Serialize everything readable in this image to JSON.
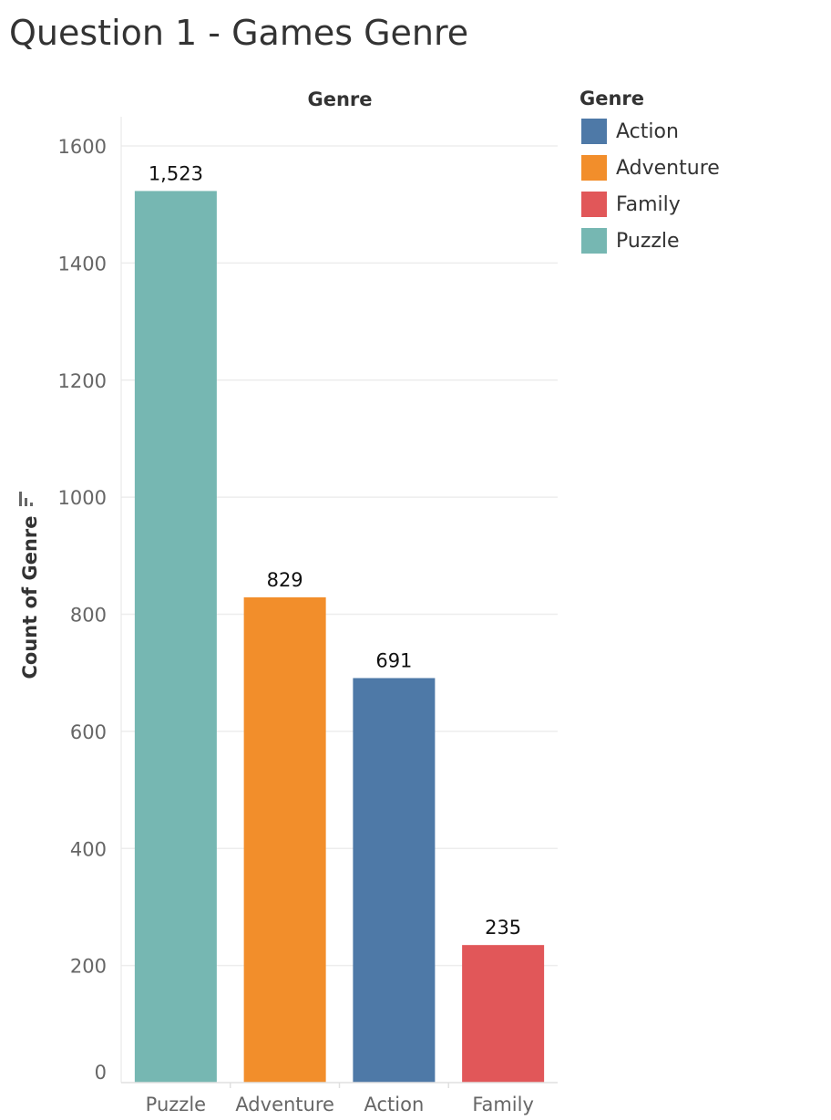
{
  "page_title": "Question 1 - Games Genre",
  "legend": {
    "title": "Genre",
    "items": [
      {
        "label": "Action",
        "color": "#4e79a7"
      },
      {
        "label": "Adventure",
        "color": "#f28e2b"
      },
      {
        "label": "Family",
        "color": "#e15759"
      },
      {
        "label": "Puzzle",
        "color": "#76b7b2"
      }
    ]
  },
  "chart_data": {
    "type": "bar",
    "title": "Question 1 - Games Genre",
    "column_header": "Genre",
    "xlabel": "",
    "ylabel": "Count of Genre",
    "categories": [
      "Puzzle",
      "Adventure",
      "Action",
      "Family"
    ],
    "values": [
      1523,
      829,
      691,
      235
    ],
    "data_labels": [
      "1,523",
      "829",
      "691",
      "235"
    ],
    "colors": [
      "#76b7b2",
      "#f28e2b",
      "#4e79a7",
      "#e15759"
    ],
    "ylim": [
      0,
      1600
    ],
    "yticks": [
      0,
      200,
      400,
      600,
      800,
      1000,
      1200,
      1400,
      1600
    ],
    "grid": true,
    "legend_position": "top-right"
  }
}
